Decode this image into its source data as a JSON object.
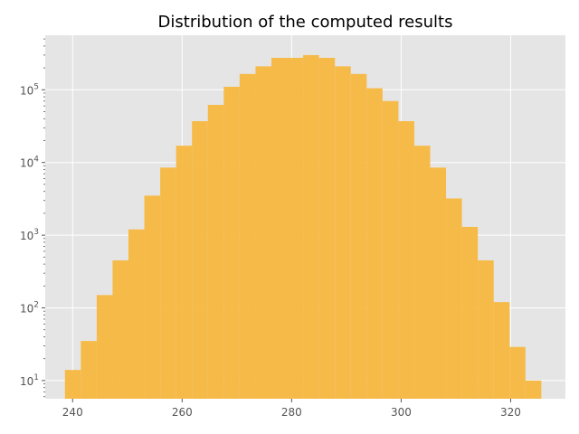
{
  "chart_data": {
    "type": "bar",
    "subtype": "histogram",
    "title": "Distribution of the computed results",
    "xlabel": "",
    "ylabel": "",
    "y_scale": "log",
    "xlim": [
      235,
      330
    ],
    "ylim_log10": [
      0.75,
      5.75
    ],
    "xticks": [
      240,
      260,
      280,
      300,
      320
    ],
    "yticks": [
      {
        "base": "10",
        "exp": "1",
        "value": 10
      },
      {
        "base": "10",
        "exp": "2",
        "value": 100
      },
      {
        "base": "10",
        "exp": "3",
        "value": 1000
      },
      {
        "base": "10",
        "exp": "4",
        "value": 10000
      },
      {
        "base": "10",
        "exp": "5",
        "value": 100000
      }
    ],
    "grid": true,
    "bar_color": "#f7b73f",
    "background_color": "#e5e5e5",
    "bin_edges": [
      238.6,
      241.5,
      244.4,
      247.3,
      250.2,
      253.1,
      256.0,
      258.9,
      261.8,
      264.7,
      267.6,
      270.5,
      273.4,
      276.3,
      279.2,
      282.1,
      285.0,
      287.9,
      290.8,
      293.7,
      296.6,
      299.5,
      302.4,
      305.3,
      308.2,
      311.1,
      314.0,
      316.9,
      319.8,
      322.7,
      325.6
    ],
    "values": [
      14,
      35,
      150,
      450,
      1200,
      3500,
      8500,
      17000,
      37000,
      62000,
      110000,
      165000,
      210000,
      275000,
      275000,
      300000,
      275000,
      210000,
      165000,
      105000,
      70000,
      37000,
      17000,
      8500,
      3200,
      1300,
      450,
      120,
      29,
      10
    ]
  }
}
